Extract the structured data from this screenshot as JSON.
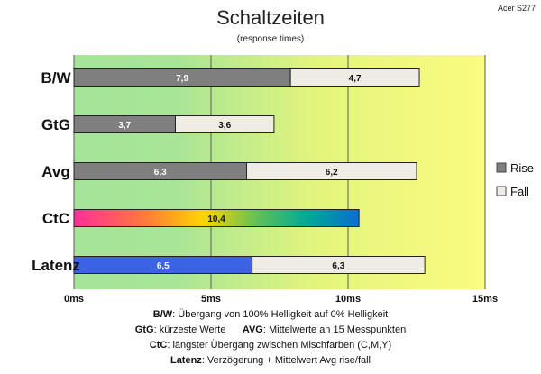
{
  "brand": "Acer S277",
  "chart_data": {
    "type": "bar",
    "orientation": "horizontal",
    "stacked": true,
    "title": "Schaltzeiten",
    "subtitle": "(response times)",
    "categories": [
      "B/W",
      "GtG",
      "Avg",
      "CtC",
      "Latenz"
    ],
    "series": [
      {
        "name": "Rise",
        "values": [
          7.9,
          3.7,
          6.3,
          10.4,
          6.5
        ],
        "value_labels": [
          "7,9",
          "3,7",
          "6,3",
          "10,4",
          "6,5"
        ]
      },
      {
        "name": "Fall",
        "values": [
          4.7,
          3.6,
          6.2,
          null,
          6.3
        ],
        "value_labels": [
          "4,7",
          "3,6",
          "6,2",
          "",
          "6,3"
        ]
      }
    ],
    "xlim": [
      0,
      15
    ],
    "xticks": [
      0,
      5,
      10,
      15
    ],
    "xtick_labels": [
      "0ms",
      "5ms",
      "10ms",
      "15ms"
    ],
    "legend_position": "right",
    "colors": {
      "rise": "#7f7f7f",
      "fall": "#efece3",
      "latenz_rise": "#3a63e6",
      "background_gradient": [
        "#a6e49a",
        "#e6f57a",
        "#fbfb80"
      ],
      "ctc_gradient": [
        "#ff2f98",
        "#ffd400",
        "#00a896",
        "#0a6ecf"
      ]
    }
  },
  "notes": [
    {
      "key": "B/W",
      "text": ":  Übergang von 100% Helligkeit auf 0% Helligkeit"
    },
    {
      "key": "GtG",
      "text": ": kürzeste  Werte",
      "key2": "AVG",
      "text2": ": Mittelwerte  an 15 Messpunkten"
    },
    {
      "key": "CtC",
      "text": ": längster Übergang  zwischen Mischfarben (C,M,Y)"
    },
    {
      "key": "Latenz",
      "text": ": Verzögerung  + Mittelwert  Avg rise/fall"
    }
  ]
}
